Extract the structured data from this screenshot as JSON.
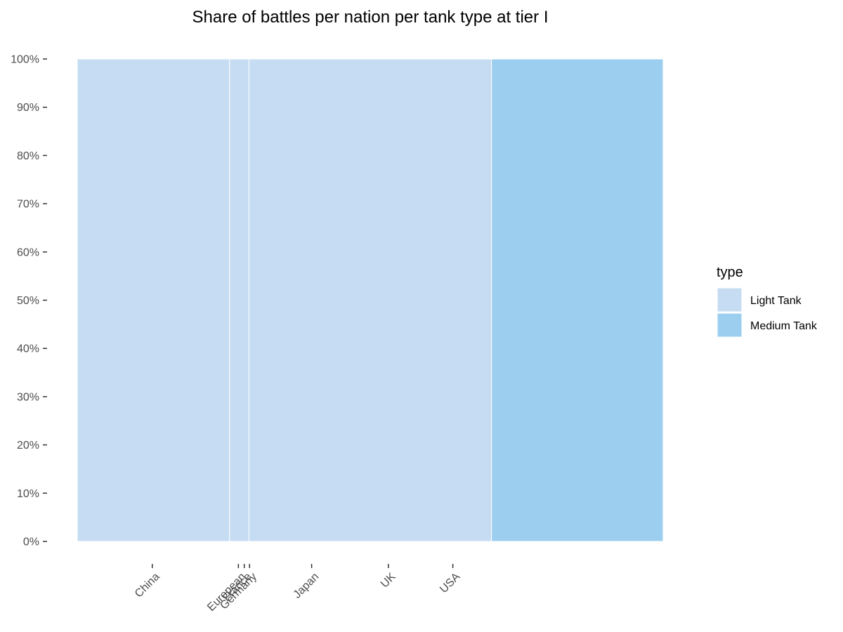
{
  "chart_data": {
    "type": "bar",
    "title": "Share of battles per nation per tank type at tier I",
    "xlabel": "",
    "ylabel": "",
    "ylim": [
      0,
      1
    ],
    "y_ticks": [
      "0%",
      "10%",
      "20%",
      "30%",
      "40%",
      "50%",
      "60%",
      "70%",
      "80%",
      "90%",
      "100%"
    ],
    "y_tick_values": [
      0,
      0.1,
      0.2,
      0.3,
      0.4,
      0.5,
      0.6,
      0.7,
      0.8,
      0.9,
      1.0
    ],
    "legend": {
      "title": "type",
      "placement": "right",
      "entries": [
        {
          "name": "Light Tank",
          "color": "#c6dcf2"
        },
        {
          "name": "Medium Tank",
          "color": "#9ccfef"
        }
      ]
    },
    "grid": false,
    "segments": [
      {
        "type": "Light Tank",
        "x_start": 0.0,
        "x_end": 0.26,
        "share": 1.0
      },
      {
        "type": "Light Tank",
        "x_start": 0.26,
        "x_end": 0.293,
        "share": 1.0
      },
      {
        "type": "Light Tank",
        "x_start": 0.293,
        "x_end": 0.707,
        "share": 1.0
      },
      {
        "type": "Medium Tank",
        "x_start": 0.707,
        "x_end": 1.0,
        "share": 1.0
      }
    ],
    "x_ticks": [
      {
        "label": "China",
        "x": 0.128
      },
      {
        "label": "European",
        "x": 0.275
      },
      {
        "label": "France",
        "x": 0.285
      },
      {
        "label": "Germany",
        "x": 0.294
      },
      {
        "label": "Japan",
        "x": 0.4
      },
      {
        "label": "UK",
        "x": 0.531
      },
      {
        "label": "USA",
        "x": 0.641
      }
    ]
  }
}
